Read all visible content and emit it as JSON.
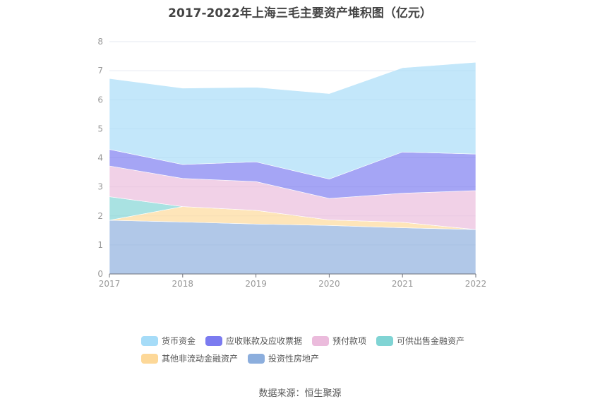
{
  "chart_data": {
    "type": "area",
    "stacked": true,
    "title": "2017-2022年上海三毛主要资产堆积图（亿元）",
    "categories": [
      "2017",
      "2018",
      "2019",
      "2020",
      "2021",
      "2022"
    ],
    "ylim": [
      0,
      8
    ],
    "yticks": [
      "0",
      "1",
      "2",
      "3",
      "4",
      "5",
      "6",
      "7",
      "8"
    ],
    "grid": true,
    "legend_position": "bottom",
    "series": [
      {
        "name": "投资性房地产",
        "color": "#8caedd",
        "values": [
          1.85,
          1.79,
          1.72,
          1.67,
          1.59,
          1.53
        ]
      },
      {
        "name": "其他非流动金融资产",
        "color": "#fdd898",
        "values": [
          0,
          0.53,
          0.47,
          0.19,
          0.19,
          0
        ]
      },
      {
        "name": "可供出售金融资产",
        "color": "#80d4d4",
        "values": [
          0.81,
          0,
          0,
          0,
          0,
          0
        ]
      },
      {
        "name": "预付款项",
        "color": "#ebbbdc",
        "values": [
          1.06,
          0.97,
          0.99,
          0.74,
          1.0,
          1.34
        ]
      },
      {
        "name": "应收账款及应收票据",
        "color": "#7b7bf0",
        "values": [
          0.57,
          0.48,
          0.68,
          0.67,
          1.42,
          1.26
        ]
      },
      {
        "name": "货币资金",
        "color": "#a6dcf8",
        "values": [
          2.44,
          2.63,
          2.57,
          2.94,
          2.9,
          3.16
        ]
      }
    ],
    "legend_order": [
      "货币资金",
      "应收账款及应收票据",
      "预付款项",
      "可供出售金融资产",
      "其他非流动金融资产",
      "投资性房地产"
    ]
  },
  "source": "数据来源：恒生聚源"
}
